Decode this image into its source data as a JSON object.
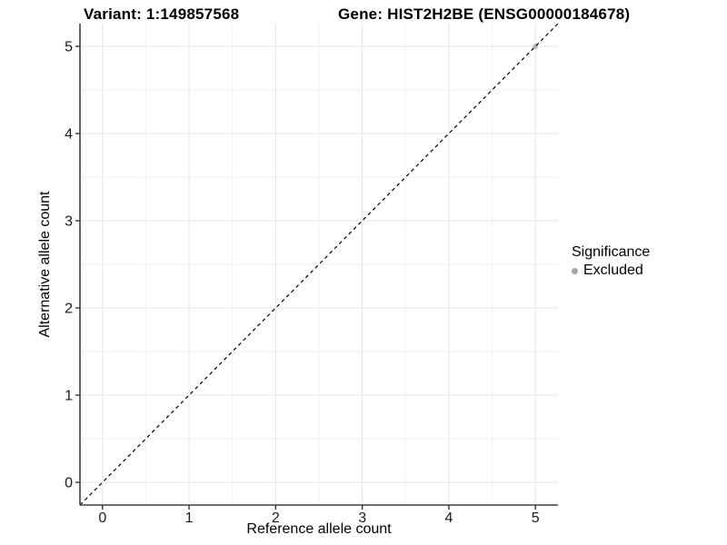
{
  "header": {
    "left_title": "Variant: 1:149857568",
    "right_title": "Gene: HIST2H2BE (ENSG00000184678)"
  },
  "chart_data": {
    "type": "scatter",
    "xlabel": "Reference allele count",
    "ylabel": "Alternative allele count",
    "xlim": [
      -0.26,
      5.26
    ],
    "ylim": [
      -0.26,
      5.26
    ],
    "xticks": [
      0,
      1,
      2,
      3,
      4,
      5
    ],
    "yticks": [
      0,
      1,
      2,
      3,
      4,
      5
    ],
    "xticks_minor": [
      0.5,
      1.5,
      2.5,
      3.5,
      4.5
    ],
    "yticks_minor": [
      0.5,
      1.5,
      2.5,
      3.5,
      4.5
    ],
    "grid": true,
    "identity_line": {
      "style": "dashed",
      "color": "#000000",
      "slope": 1,
      "intercept": 0
    },
    "series": [
      {
        "name": "Excluded",
        "color": "#b8b8b8",
        "points": [
          [
            5,
            5
          ]
        ]
      }
    ],
    "legend": {
      "title": "Significance",
      "position": "right",
      "entries": [
        {
          "label": "Excluded",
          "color": "#a6a6a6"
        }
      ]
    },
    "colors": {
      "grid_major": "#e4e4e4",
      "grid_minor": "#f2f2f2",
      "axis_line": "#404040",
      "tick_mark": "#333333",
      "tick_label": "#1a1a1a",
      "panel_bg": "#ffffff"
    }
  }
}
